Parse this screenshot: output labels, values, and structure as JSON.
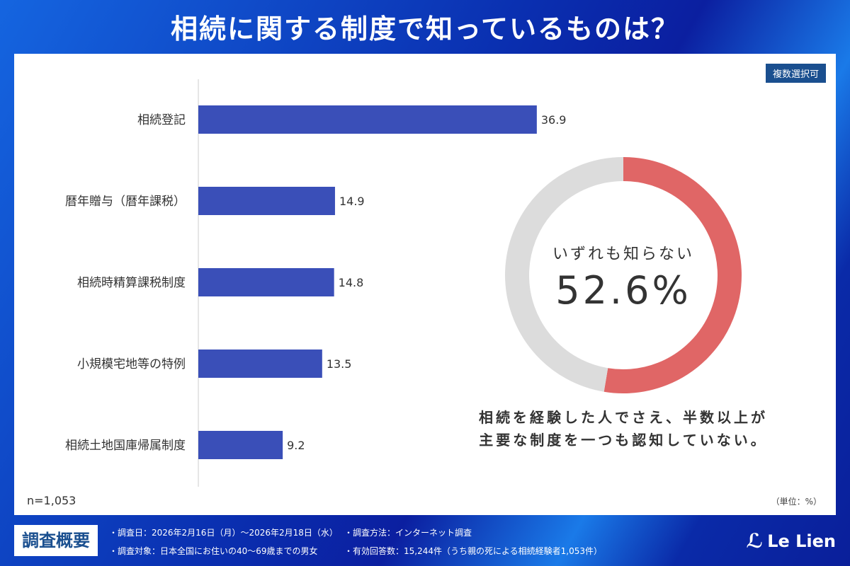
{
  "title": "相続に関する制度で知っているものは？",
  "badge": "複数選択可",
  "sample": "n=1,053",
  "unit": "（単位：%）",
  "chart_data": [
    {
      "type": "bar",
      "orientation": "horizontal",
      "categories": [
        "相続登記",
        "暦年贈与（暦年課税）",
        "相続時精算課税制度",
        "小規模宅地等の特例",
        "相続土地国庫帰属制度"
      ],
      "values": [
        36.9,
        14.9,
        14.8,
        13.5,
        9.2
      ],
      "data_labels": [
        "36.9",
        "14.9",
        "14.8",
        "13.5",
        "9.2"
      ],
      "color": "#3a4fb8"
    },
    {
      "type": "pie",
      "donut": true,
      "slices": [
        {
          "label": "いずれも知らない",
          "value": 52.6,
          "color": "#e06666"
        },
        {
          "value": 47.4,
          "color": "#dcdcdc"
        }
      ],
      "center_label": "いずれも知らない",
      "center_value": "52.6%"
    }
  ],
  "note": [
    "相続を経験した人でさえ、半数以上が",
    "主要な制度を一つも認知していない。"
  ],
  "footer": {
    "heading": "調査概要",
    "items": [
      "・調査日：2026年2月16日（月）〜2026年2月18日（水）",
      "・調査対象：日本全国にお住いの40〜69歳までの男女",
      "・調査方法：インターネット調査",
      "・有効回答数：15,244件（うち親の死による相続経験者1,053件）"
    ],
    "logo": "Le Lien"
  }
}
